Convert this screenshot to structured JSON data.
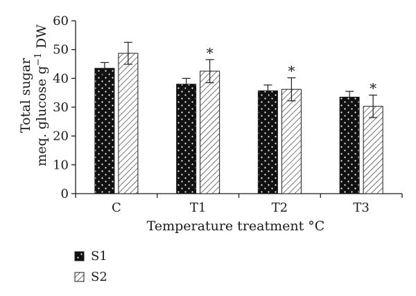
{
  "chart_data": {
    "type": "bar",
    "categories": [
      "C",
      "T1",
      "T2",
      "T3"
    ],
    "series": [
      {
        "name": "S1",
        "values": [
          43.5,
          38.0,
          35.7,
          33.5
        ],
        "errors": [
          2.0,
          2.0,
          2.0,
          2.0
        ],
        "pattern": "dots",
        "color": "#111111"
      },
      {
        "name": "S2",
        "values": [
          48.7,
          42.5,
          36.2,
          30.3
        ],
        "errors": [
          3.8,
          4.0,
          4.0,
          3.9
        ],
        "pattern": "hatch",
        "color": "#ffffff"
      }
    ],
    "significance": [
      {
        "category": "T1",
        "series": "S2",
        "mark": "*"
      },
      {
        "category": "T2",
        "series": "S2",
        "mark": "*"
      },
      {
        "category": "T3",
        "series": "S2",
        "mark": "*"
      }
    ],
    "xlabel": "Temperature treatment °C",
    "ylabel_line1": "Total sugar",
    "ylabel_line2_prefix": "meq. glucose g",
    "ylabel_line2_sup": "−1",
    "ylabel_line2_suffix": " DW",
    "ylim": [
      0,
      60
    ],
    "yticks": [
      "0",
      "10",
      "20",
      "30",
      "40",
      "50",
      "60"
    ],
    "grid": false,
    "legend_position": "bottom-left"
  }
}
